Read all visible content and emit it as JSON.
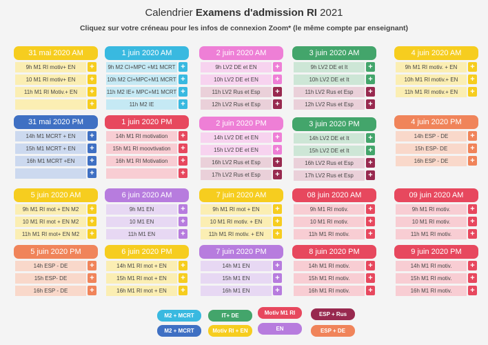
{
  "header": {
    "title_prefix": "Calendrier ",
    "title_bold": "Examens d'admission RI",
    "title_suffix": " 2021",
    "subtitle": "Cliquez sur votre créneau pour les infos de connexion Zoom*  (le même compte par enseignant)"
  },
  "colors": {
    "yellow": "#f6cd1f",
    "yellow_light": "#fbeeb3",
    "cyan": "#39b9e0",
    "cyan_light": "#c5e9f4",
    "pink": "#ee7fd6",
    "pink_light": "#f7d3ef",
    "green": "#43a56b",
    "green_light": "#cde6d6",
    "maroon": "#98294f",
    "maroon_light": "#ead0d9",
    "blue": "#3f70c3",
    "blue_light": "#ccd9ef",
    "red": "#e7485e",
    "red_light": "#f8cdd3",
    "orange": "#f0845a",
    "orange_light": "#f9d8ca",
    "purple": "#b77cde",
    "purple_light": "#e7d8f3"
  },
  "cards": [
    {
      "id": "r1c1",
      "title": "31 mai 2020 AM",
      "slots": [
        "9h M1 RI motiv+ EN",
        "10 M1 RI motiv+ EN",
        "11h M1 RI Motiv.+ EN",
        ""
      ]
    },
    {
      "id": "r1c2",
      "title": "1 juin 2020 AM",
      "slots": [
        "9h M2 CI+MPC +M1 MCRT",
        "10h M2 CI+MPC+M1 MCRT",
        "11h M2 IE+ MPC+M1 MCRT",
        "11h M2 IE"
      ]
    },
    {
      "id": "r1c3",
      "title": "2 juin 2020 AM",
      "slots": [
        "9h LV2 DE et EN",
        "10h LV2 DE et EN",
        "11h LV2 Rus et Esp",
        "12h LV2 Rus et Esp"
      ]
    },
    {
      "id": "r1c4",
      "title": "3 juin 2020 AM",
      "slots": [
        "9h LV2 DE et It",
        "10h LV2 DE et It",
        "11h LV2 Rus et Esp",
        "12h LV2 Rus et Esp"
      ]
    },
    {
      "id": "r1c5",
      "title": "4 juin 2020 AM",
      "slots": [
        "9h M1 RI motiv. + EN",
        "10h M1 RI motiv.+ EN",
        "11h M1 RI motiv.+ EN"
      ]
    },
    {
      "id": "r2c1",
      "title": "31 mai 2020 PM",
      "slots": [
        "14h M1 MCRT + EN",
        "15h M1 MCRT + EN",
        "16h M1 MCRT +EN",
        ""
      ]
    },
    {
      "id": "r2c2",
      "title": "1 juin 2020 PM",
      "slots": [
        "14h M1 RI motivation",
        "15h M1 RI moovtivation",
        "16h M1 RI Motivation",
        ""
      ]
    },
    {
      "id": "r2c3",
      "title": "2 juin 2020 PM",
      "slots": [
        "14h LV2 DE et EN",
        "15h LV2 DE et EN",
        "16h LV2 Rus et Esp",
        "17h LV2 Rus et Esp"
      ]
    },
    {
      "id": "r2c4",
      "title": "3 juin 2020 PM",
      "slots": [
        "14h LV2 DE et It",
        "15h LV2 DE et It",
        "16h LV2 Rus et Esp",
        "17h LV2 Rus et Esp"
      ]
    },
    {
      "id": "r2c5",
      "title": "4 juin 2020 PM",
      "slots": [
        "14h ESP - DE",
        "15h ESP- DE",
        "16h ESP - DE"
      ]
    },
    {
      "id": "r3c1",
      "title": "5 juin 2020 AM",
      "slots": [
        "9h M1 RI mot + EN M2",
        "10 M1 RI mot + EN M2",
        "11h M1 RI mot+ EN M2"
      ]
    },
    {
      "id": "r3c2",
      "title": "6 juin 2020 AM",
      "slots": [
        "9h M1  EN",
        "10 M1 EN",
        "11h M1  EN"
      ]
    },
    {
      "id": "r3c3",
      "title": "7 juin 2020 AM",
      "slots": [
        "9h M1 RI mot + EN",
        "10 M1 RI motiv. + EN",
        "11h M1 RI motiv. + EN"
      ]
    },
    {
      "id": "r3c4",
      "title": "08 juin 2020 AM",
      "slots": [
        "9h M1 RI motiv.",
        "10 M1 RI motiv.",
        "11h M1 RI motiv."
      ]
    },
    {
      "id": "r3c5",
      "title": "09 juin 2020 AM",
      "slots": [
        "9h M1 RI motiv.",
        "10 M1 RI motiv.",
        "11h M1 RI motiv."
      ]
    },
    {
      "id": "r4c1",
      "title": "5 juin 2020 PM",
      "slots": [
        "14h ESP - DE",
        "15h ESP- DE",
        "16h ESP - DE"
      ]
    },
    {
      "id": "r4c2",
      "title": "6 juin 2020 PM",
      "slots": [
        "14h M1 RI mot + EN",
        "15h M1 RI mot + EN",
        "16h M1 RI mot + EN"
      ]
    },
    {
      "id": "r4c3",
      "title": "7 juin 2020 PM",
      "slots": [
        "14h M1 EN",
        "15h M1 EN",
        "16h M1 EN"
      ]
    },
    {
      "id": "r4c4",
      "title": "8 juin 2020 PM",
      "slots": [
        "14h M1 RI motiv.",
        "15h M1 RI motiv.",
        "16h M1 RI motiv."
      ]
    },
    {
      "id": "r4c5",
      "title": "9 juin 2020 PM",
      "slots": [
        "14h M1 RI motiv.",
        "15h M1 RI motiv.",
        "16h M1 RI motiv."
      ]
    }
  ],
  "legend": [
    "M2 + MCRT",
    "M2 + MCRT",
    "IT+ DE",
    "Motiv RI + EN",
    "Motiv M1  RI",
    "EN",
    "ESP + Rus",
    "ESP + DE"
  ],
  "plus_label": "+"
}
